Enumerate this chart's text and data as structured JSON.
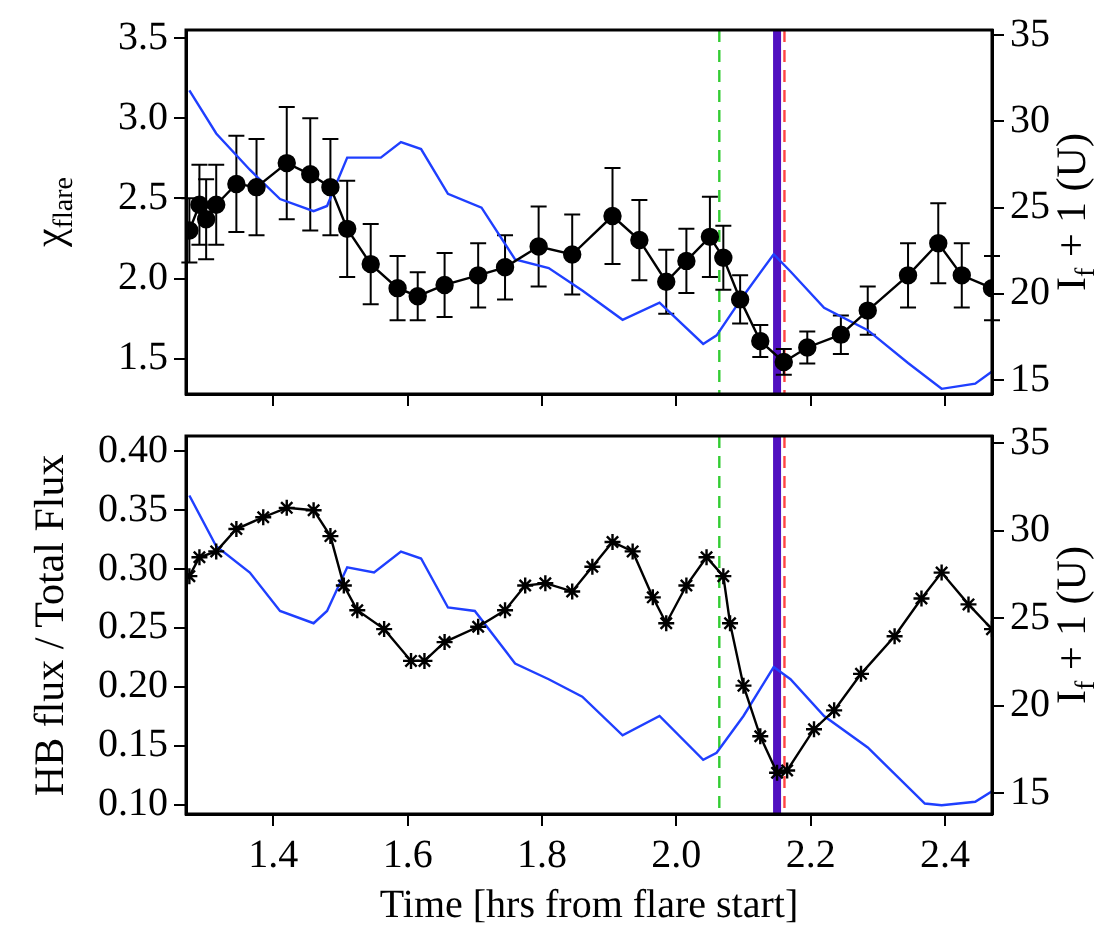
{
  "chart_data": [
    {
      "type": "line",
      "ylabel": "χ$_{flare}$",
      "y2label": "I$_{f}$ + 1 (U)",
      "xlim": [
        1.27,
        2.47
      ],
      "xticks": [
        1.4,
        1.6,
        1.8,
        2.0,
        2.2,
        2.4
      ],
      "ylim": [
        1.28,
        3.55
      ],
      "yticks": [
        1.5,
        {
          "value": 2,
          "label": "2.0"
        },
        2.5,
        {
          "value": 3,
          "label": "3.0"
        },
        3.5
      ],
      "y2lim": [
        14.2,
        35.3
      ],
      "y2ticks": [
        15,
        20,
        25,
        30,
        35
      ],
      "tick_labels": "y",
      "grid": false,
      "legend": false,
      "series": [
        {
          "marker": "circle",
          "color": "#000000",
          "x": [
            1.275,
            1.29,
            1.3,
            1.315,
            1.345,
            1.375,
            1.42,
            1.455,
            1.485,
            1.51,
            1.545,
            1.585,
            1.615,
            1.655,
            1.705,
            1.745,
            1.795,
            1.845,
            1.905,
            1.945,
            1.985,
            2.015,
            2.05,
            2.07,
            2.095,
            2.125,
            2.16,
            2.195,
            2.245,
            2.285,
            2.345,
            2.39,
            2.425,
            2.47
          ],
          "values": [
            2.3,
            2.46,
            2.37,
            2.46,
            2.59,
            2.57,
            2.72,
            2.65,
            2.57,
            2.31,
            2.09,
            1.94,
            1.89,
            1.96,
            2.02,
            2.07,
            2.2,
            2.15,
            2.39,
            2.24,
            1.98,
            2.11,
            2.26,
            2.13,
            1.87,
            1.61,
            1.48,
            1.57,
            1.65,
            1.8,
            2.02,
            2.22,
            2.02,
            1.94
          ],
          "errors": [
            0.2,
            0.25,
            0.25,
            0.25,
            0.3,
            0.3,
            0.35,
            0.35,
            0.3,
            0.3,
            0.25,
            0.2,
            0.15,
            0.2,
            0.2,
            0.2,
            0.25,
            0.25,
            0.3,
            0.25,
            0.2,
            0.2,
            0.25,
            0.2,
            0.15,
            0.1,
            0.08,
            0.1,
            0.12,
            0.15,
            0.2,
            0.25,
            0.2,
            0.2
          ]
        },
        {
          "marker": "none",
          "axis": "y2",
          "color": "#1f3fff",
          "x": [
            1.275,
            1.315,
            1.365,
            1.41,
            1.46,
            1.48,
            1.51,
            1.56,
            1.59,
            1.62,
            1.66,
            1.71,
            1.76,
            1.81,
            1.86,
            1.92,
            1.975,
            2.04,
            2.06,
            2.1,
            2.145,
            2.17,
            2.22,
            2.285,
            2.345,
            2.395,
            2.445,
            2.47
          ],
          "values": [
            31.8,
            29.3,
            27.2,
            25.5,
            24.8,
            25.1,
            27.9,
            27.9,
            28.8,
            28.4,
            25.8,
            25.0,
            22.0,
            21.5,
            20.2,
            18.5,
            19.5,
            17.1,
            17.6,
            19.9,
            22.3,
            21.3,
            19.2,
            17.9,
            16.0,
            14.5,
            14.8,
            15.5
          ]
        }
      ],
      "ref_lines": [
        {
          "axis": "x",
          "value": 2.064,
          "color": "#33cc33",
          "line_style": "dashed"
        },
        {
          "axis": "x",
          "value": 2.15,
          "color": "#5010c0",
          "line_style": "solid"
        },
        {
          "axis": "x",
          "value": 2.161,
          "color": "#ff4444",
          "line_style": "dashed"
        }
      ]
    },
    {
      "type": "line",
      "xlabel": "Time [hrs from flare start]",
      "ylabel": "HB flux / Total Flux",
      "y2label": "I$_{f}$ + 1 (U)",
      "xlim": [
        1.27,
        2.47
      ],
      "xticks": [
        1.4,
        1.6,
        1.8,
        {
          "value": 2,
          "label": "2.0"
        },
        2.2,
        2.4
      ],
      "ylim": [
        0.092,
        0.413
      ],
      "yticks": [
        {
          "value": 0.1,
          "label": "0.10"
        },
        0.15,
        {
          "value": 0.2,
          "label": "0.20"
        },
        0.25,
        {
          "value": 0.3,
          "label": "0.30"
        },
        0.35,
        {
          "value": 0.4,
          "label": "0.40"
        }
      ],
      "y2lim": [
        13.8,
        35.4
      ],
      "y2ticks": [
        15,
        20,
        25,
        30,
        35
      ],
      "grid": false,
      "legend": false,
      "series": [
        {
          "marker": "cross",
          "color": "#000000",
          "x": [
            1.275,
            1.29,
            1.315,
            1.345,
            1.385,
            1.42,
            1.46,
            1.485,
            1.505,
            1.525,
            1.565,
            1.605,
            1.625,
            1.655,
            1.705,
            1.745,
            1.775,
            1.805,
            1.845,
            1.875,
            1.905,
            1.935,
            1.965,
            1.985,
            2.015,
            2.045,
            2.07,
            2.08,
            2.1,
            2.125,
            2.15,
            2.165,
            2.205,
            2.235,
            2.275,
            2.325,
            2.365,
            2.395,
            2.435,
            2.47
          ],
          "values": [
            0.294,
            0.31,
            0.315,
            0.334,
            0.344,
            0.352,
            0.35,
            0.328,
            0.286,
            0.265,
            0.249,
            0.222,
            0.222,
            0.238,
            0.251,
            0.265,
            0.286,
            0.288,
            0.281,
            0.302,
            0.323,
            0.315,
            0.276,
            0.254,
            0.286,
            0.31,
            0.294,
            0.254,
            0.201,
            0.158,
            0.127,
            0.129,
            0.164,
            0.18,
            0.211,
            0.243,
            0.275,
            0.297,
            0.27,
            0.249
          ]
        },
        {
          "marker": "none",
          "axis": "y2",
          "color": "#1f3fff",
          "x": [
            1.275,
            1.315,
            1.365,
            1.41,
            1.46,
            1.48,
            1.51,
            1.55,
            1.59,
            1.62,
            1.66,
            1.7,
            1.76,
            1.81,
            1.86,
            1.92,
            1.975,
            2.04,
            2.06,
            2.1,
            2.145,
            2.17,
            2.22,
            2.285,
            2.37,
            2.395,
            2.445,
            2.47
          ],
          "values": [
            32.0,
            29.1,
            27.6,
            25.4,
            24.7,
            25.4,
            27.9,
            27.6,
            28.8,
            28.4,
            25.6,
            25.4,
            22.4,
            21.5,
            20.5,
            18.3,
            19.4,
            16.9,
            17.3,
            19.4,
            22.2,
            21.5,
            19.4,
            17.6,
            14.4,
            14.3,
            14.5,
            15.1
          ]
        }
      ],
      "ref_lines": [
        {
          "axis": "x",
          "value": 2.064,
          "color": "#33cc33",
          "line_style": "dashed"
        },
        {
          "axis": "x",
          "value": 2.15,
          "color": "#5010c0",
          "line_style": "solid"
        },
        {
          "axis": "x",
          "value": 2.161,
          "color": "#ff4444",
          "line_style": "dashed"
        }
      ]
    }
  ]
}
